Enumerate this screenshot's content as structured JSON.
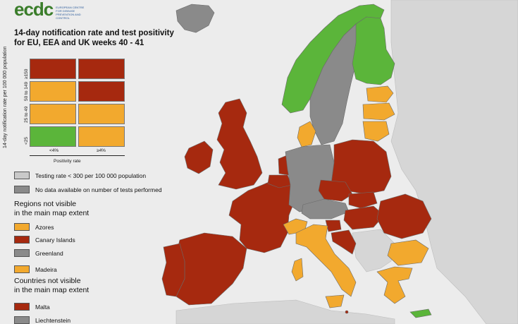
{
  "colors": {
    "red": "#a6290f",
    "orange": "#f2a92e",
    "green": "#5bb53a",
    "dark_grey": "#8a8a8a",
    "light_grey": "#c9c9c9",
    "sea": "#ececec",
    "outside": "#d6d6d6"
  },
  "logo": {
    "mark": "ecdc",
    "subtitle": "EUROPEAN CENTRE FOR DISEASE PREVENTION AND CONTROL",
    "icon": "ecdc-logo-icon"
  },
  "title": {
    "line1": "14-day notification rate and test positivity",
    "line2": "for EU, EEA and UK weeks 40 - 41"
  },
  "matrix": {
    "y_axis_label": "14-day notification rate per 100 000 population",
    "x_axis_label": "Positivity rate",
    "columns": [
      "<4%",
      "≥4%"
    ],
    "rows": [
      "≥150",
      "50 to 149",
      "25 to 49",
      "<25"
    ],
    "cells": [
      [
        "red",
        "red"
      ],
      [
        "orange",
        "red"
      ],
      [
        "orange",
        "orange"
      ],
      [
        "green",
        "orange"
      ]
    ]
  },
  "legend": [
    {
      "label": "Testing rate < 300 per 100 000 population",
      "color": "light_grey"
    },
    {
      "label": "No data available on number of tests performed",
      "color": "dark_grey"
    }
  ],
  "regions_section": {
    "title_line1": "Regions not visible",
    "title_line2": "in the main map extent",
    "items": [
      {
        "label": "Azores",
        "color": "orange"
      },
      {
        "label": "Canary Islands",
        "color": "red"
      },
      {
        "label": "Greenland",
        "color": "dark_grey"
      },
      {
        "label": "Madeira",
        "color": "orange"
      }
    ]
  },
  "countries_section": {
    "title_line1": "Countries not visible",
    "title_line2": "in the main map extent",
    "items": [
      {
        "label": "Malta",
        "color": "red"
      },
      {
        "label": "Liechtenstein",
        "color": "dark_grey"
      }
    ]
  },
  "map": {
    "countries": [
      {
        "name": "Iceland",
        "status": "dark_grey"
      },
      {
        "name": "Norway",
        "status": "green"
      },
      {
        "name": "Sweden",
        "status": "dark_grey"
      },
      {
        "name": "Finland",
        "status": "green"
      },
      {
        "name": "Estonia",
        "status": "orange"
      },
      {
        "name": "Latvia",
        "status": "orange"
      },
      {
        "name": "Lithuania",
        "status": "orange"
      },
      {
        "name": "Denmark",
        "status": "orange"
      },
      {
        "name": "Ireland",
        "status": "red"
      },
      {
        "name": "United Kingdom",
        "status": "red"
      },
      {
        "name": "Netherlands",
        "status": "red"
      },
      {
        "name": "Belgium",
        "status": "red"
      },
      {
        "name": "Luxembourg",
        "status": "red"
      },
      {
        "name": "France",
        "status": "red"
      },
      {
        "name": "Spain",
        "status": "red"
      },
      {
        "name": "Portugal",
        "status": "red"
      },
      {
        "name": "Germany",
        "status": "dark_grey"
      },
      {
        "name": "Poland",
        "status": "red"
      },
      {
        "name": "Czechia",
        "status": "red"
      },
      {
        "name": "Slovakia",
        "status": "red"
      },
      {
        "name": "Austria",
        "status": "dark_grey"
      },
      {
        "name": "Switzerland",
        "status": "orange"
      },
      {
        "name": "Hungary",
        "status": "red"
      },
      {
        "name": "Slovenia",
        "status": "red"
      },
      {
        "name": "Croatia",
        "status": "red"
      },
      {
        "name": "Italy",
        "status": "orange"
      },
      {
        "name": "Romania",
        "status": "red"
      },
      {
        "name": "Bulgaria",
        "status": "orange"
      },
      {
        "name": "Greece",
        "status": "orange"
      },
      {
        "name": "Cyprus",
        "status": "green"
      }
    ]
  }
}
